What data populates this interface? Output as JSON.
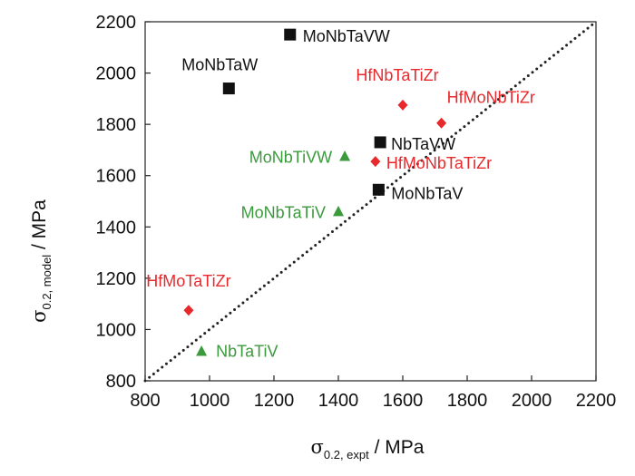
{
  "chart_data": {
    "type": "scatter",
    "title": "",
    "xlabel": {
      "symbol": "σ",
      "subscript": "0.2, expt",
      "unit": " / MPa"
    },
    "ylabel": {
      "symbol": "σ",
      "subscript": "0.2, model",
      "unit": " / MPa"
    },
    "xlim": [
      800,
      2200
    ],
    "ylim": [
      800,
      2200
    ],
    "x_ticks": [
      800,
      1000,
      1200,
      1400,
      1600,
      1800,
      2000,
      2200
    ],
    "y_ticks": [
      800,
      1000,
      1200,
      1400,
      1600,
      1800,
      2000,
      2200
    ],
    "grid": false,
    "reference_line": {
      "style": "dotted",
      "color": "#222222",
      "from": [
        800,
        800
      ],
      "to": [
        2200,
        2200
      ]
    },
    "series": [
      {
        "marker": "square",
        "color": "#111111",
        "points": [
          {
            "label": "MoNbTaVW",
            "x": 1250,
            "y": 2150
          },
          {
            "label": "MoNbTaW",
            "x": 1060,
            "y": 1940
          },
          {
            "label": "NbTaVW",
            "x": 1530,
            "y": 1730
          },
          {
            "label": "MoNbTaV",
            "x": 1525,
            "y": 1545
          }
        ]
      },
      {
        "marker": "diamond",
        "color": "#e8292c",
        "points": [
          {
            "label": "HfNbTaTiZr",
            "x": 1600,
            "y": 1875
          },
          {
            "label": "HfMoNbTiZr",
            "x": 1720,
            "y": 1805
          },
          {
            "label": "HfMoNbTaTiZr",
            "x": 1515,
            "y": 1655
          },
          {
            "label": "HfMoTaTiZr",
            "x": 935,
            "y": 1075
          }
        ]
      },
      {
        "marker": "triangle",
        "color": "#3a9a3c",
        "points": [
          {
            "label": "MoNbTiVW",
            "x": 1420,
            "y": 1675
          },
          {
            "label": "MoNbTaTiV",
            "x": 1400,
            "y": 1460
          },
          {
            "label": "NbTaTiV",
            "x": 975,
            "y": 915
          }
        ]
      }
    ]
  }
}
